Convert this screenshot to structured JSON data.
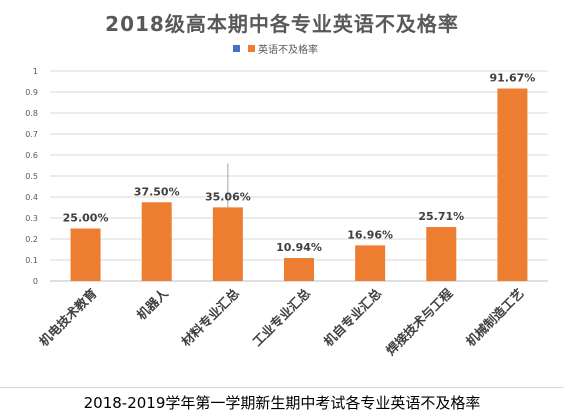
{
  "chart_data": {
    "type": "bar",
    "title": "2018级高本期中各专业英语不及格率",
    "categories": [
      "机电技术教育",
      "机器人",
      "材料专业汇总",
      "工业专业汇总",
      "机自专业汇总",
      "焊接技术与工程",
      "机械制造工艺"
    ],
    "series": [
      {
        "name": "",
        "values": [
          0,
          0,
          0,
          0,
          0,
          0,
          0
        ],
        "color": "#4472C4"
      },
      {
        "name": "英语不及格率",
        "values": [
          0.25,
          0.375,
          0.3506,
          0.1094,
          0.1696,
          0.2571,
          0.9167
        ],
        "color": "#ED7D31"
      }
    ],
    "data_labels": [
      "25.00%",
      "37.50%",
      "35.06%",
      "10.94%",
      "16.96%",
      "25.71%",
      "91.67%"
    ],
    "y_ticks": [
      "0",
      "0.1",
      "0.2",
      "0.3",
      "0.4",
      "0.5",
      "0.6",
      "0.7",
      "0.8",
      "0.9",
      "1"
    ],
    "ylim": [
      0,
      1
    ],
    "grid": true,
    "legend_position": "top"
  },
  "caption": "2018-2019学年第一学期新生期中考试各专业英语不及格率"
}
